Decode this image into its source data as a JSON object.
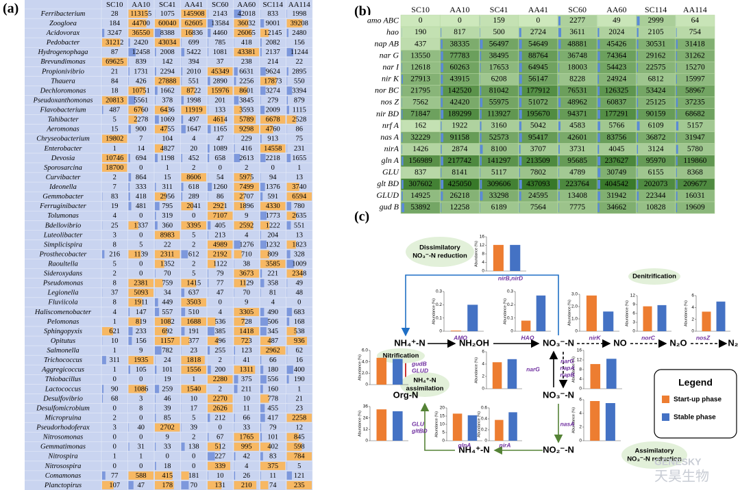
{
  "panel_a": {
    "label": "(a)",
    "columns": [
      "SC10",
      "AA10",
      "SC41",
      "AA41",
      "SC60",
      "AA60",
      "SC114",
      "AA114"
    ],
    "rows": [
      {
        "name": "Ferribacterium",
        "values": [
          28,
          113155,
          1075,
          145908,
          2143,
          42018,
          833,
          1998
        ]
      },
      {
        "name": "Zoogloea",
        "values": [
          184,
          44700,
          60040,
          62605,
          13584,
          36032,
          9001,
          39208
        ]
      },
      {
        "name": "Acidovorax",
        "values": [
          3247,
          36550,
          8388,
          16836,
          4460,
          26065,
          12145,
          2480
        ]
      },
      {
        "name": "Pedobacter",
        "values": [
          31212,
          2420,
          43034,
          699,
          785,
          418,
          2082,
          156
        ]
      },
      {
        "name": "Hydrogenophaga",
        "values": [
          87,
          12458,
          2008,
          5422,
          1081,
          43381,
          2137,
          11244
        ]
      },
      {
        "name": "Brevundimonas",
        "values": [
          69625,
          839,
          142,
          394,
          37,
          238,
          214,
          22
        ]
      },
      {
        "name": "Propionivibrio",
        "values": [
          21,
          1731,
          2294,
          2010,
          45349,
          6631,
          9624,
          2895
        ]
      },
      {
        "name": "Thauera",
        "values": [
          84,
          426,
          27888,
          551,
          2890,
          2256,
          17873,
          550
        ]
      },
      {
        "name": "Dechloromonas",
        "values": [
          18,
          10751,
          1662,
          8722,
          15976,
          8601,
          3274,
          3394
        ]
      },
      {
        "name": "Pseudoxanthomonas",
        "values": [
          20813,
          5561,
          378,
          1998,
          201,
          3845,
          279,
          879
        ]
      },
      {
        "name": "Flavobacterium",
        "values": [
          487,
          6760,
          6436,
          11919,
          133,
          3593,
          2009,
          1115
        ]
      },
      {
        "name": "Tahibacter",
        "values": [
          5,
          2278,
          1069,
          497,
          4614,
          5789,
          6678,
          2528
        ]
      },
      {
        "name": "Aeromonas",
        "values": [
          15,
          900,
          4755,
          1647,
          1165,
          9298,
          4760,
          86
        ]
      },
      {
        "name": "Chryseobacterium",
        "values": [
          19802,
          7,
          104,
          4,
          47,
          229,
          913,
          75
        ]
      },
      {
        "name": "Enterobacter",
        "values": [
          1,
          14,
          4827,
          20,
          1089,
          416,
          14558,
          231
        ]
      },
      {
        "name": "Devosia",
        "values": [
          10746,
          694,
          1198,
          452,
          658,
          2613,
          2218,
          1655
        ]
      },
      {
        "name": "Sporosarcina",
        "values": [
          18700,
          0,
          1,
          2,
          0,
          2,
          0,
          1
        ]
      },
      {
        "name": "Curvibacter",
        "values": [
          2,
          864,
          15,
          8606,
          54,
          5975,
          94,
          13
        ]
      },
      {
        "name": "Ideonella",
        "values": [
          7,
          333,
          311,
          618,
          1260,
          7499,
          1376,
          3740
        ]
      },
      {
        "name": "Gemmobacter",
        "values": [
          83,
          418,
          2956,
          289,
          86,
          2707,
          591,
          6594
        ]
      },
      {
        "name": "Ferruginibacter",
        "values": [
          19,
          481,
          795,
          2041,
          2921,
          1896,
          4330,
          780
        ]
      },
      {
        "name": "Tolumonas",
        "values": [
          4,
          0,
          319,
          0,
          7107,
          9,
          1773,
          2635
        ]
      },
      {
        "name": "Bdellovibrio",
        "values": [
          25,
          1337,
          360,
          3395,
          405,
          2592,
          1222,
          551
        ]
      },
      {
        "name": "Luteolibacter",
        "values": [
          3,
          0,
          8983,
          5,
          213,
          4,
          204,
          13
        ]
      },
      {
        "name": "Simplicispira",
        "values": [
          8,
          5,
          22,
          2,
          4989,
          1276,
          1232,
          1823
        ]
      },
      {
        "name": "Prosthecobacter",
        "values": [
          216,
          1139,
          2311,
          612,
          2192,
          710,
          809,
          328
        ]
      },
      {
        "name": "Raoultella",
        "values": [
          5,
          0,
          1352,
          2,
          1122,
          38,
          3585,
          1009
        ]
      },
      {
        "name": "Sideroxydans",
        "values": [
          2,
          0,
          70,
          5,
          79,
          3673,
          221,
          2348
        ]
      },
      {
        "name": "Pseudomonas",
        "values": [
          8,
          2381,
          759,
          1415,
          77,
          1129,
          358,
          49
        ]
      },
      {
        "name": "Legionella",
        "values": [
          37,
          5093,
          34,
          637,
          47,
          70,
          81,
          48
        ]
      },
      {
        "name": "Fluviicola",
        "values": [
          8,
          1911,
          449,
          3503,
          0,
          9,
          4,
          0
        ]
      },
      {
        "name": "Haliscomenobacter",
        "values": [
          4,
          147,
          557,
          510,
          4,
          3305,
          490,
          683
        ]
      },
      {
        "name": "Pelomonas",
        "values": [
          1,
          819,
          1082,
          1688,
          536,
          728,
          506,
          168
        ]
      },
      {
        "name": "Sphingopyxis",
        "values": [
          621,
          233,
          692,
          191,
          385,
          1418,
          345,
          538
        ]
      },
      {
        "name": "Opitutus",
        "values": [
          10,
          156,
          1157,
          377,
          496,
          723,
          487,
          936
        ]
      },
      {
        "name": "Salmonella",
        "values": [
          1,
          9,
          782,
          23,
          255,
          123,
          2962,
          62
        ]
      },
      {
        "name": "Trichococcus",
        "values": [
          311,
          1935,
          24,
          1818,
          2,
          41,
          66,
          16
        ]
      },
      {
        "name": "Aggregicoccus",
        "values": [
          1,
          105,
          101,
          1556,
          200,
          1311,
          180,
          400
        ]
      },
      {
        "name": "Thiobacillus",
        "values": [
          0,
          0,
          19,
          1,
          2280,
          375,
          556,
          190
        ]
      },
      {
        "name": "Lactococcus",
        "values": [
          90,
          1086,
          259,
          1540,
          2,
          211,
          160,
          1
        ]
      },
      {
        "name": "Desulfovibrio",
        "values": [
          68,
          3,
          46,
          10,
          2270,
          10,
          778,
          21
        ]
      },
      {
        "name": "Desulfomicrobium",
        "values": [
          0,
          8,
          39,
          17,
          2626,
          11,
          455,
          23
        ]
      },
      {
        "name": "Micropruina",
        "values": [
          2,
          0,
          85,
          5,
          212,
          66,
          417,
          2258
        ]
      },
      {
        "name": "Pseudorhodoferax",
        "values": [
          3,
          40,
          2702,
          39,
          0,
          33,
          79,
          12
        ]
      },
      {
        "name": "Nitrosomonas",
        "values": [
          0,
          0,
          9,
          2,
          67,
          1765,
          101,
          845
        ]
      },
      {
        "name": "Gemmatimonas",
        "values": [
          0,
          31,
          33,
          138,
          512,
          995,
          402,
          598
        ]
      },
      {
        "name": "Nitrospira",
        "values": [
          1,
          1,
          0,
          0,
          227,
          42,
          83,
          784
        ]
      },
      {
        "name": "Nitrosospira",
        "values": [
          0,
          0,
          18,
          0,
          339,
          4,
          375,
          5
        ]
      },
      {
        "name": "Comamonas",
        "values": [
          77,
          588,
          415,
          181,
          10,
          26,
          11,
          121
        ]
      },
      {
        "name": "Planctopirus",
        "values": [
          107,
          47,
          178,
          70,
          131,
          210,
          74,
          235
        ]
      }
    ]
  },
  "panel_b": {
    "label": "(b)",
    "columns": [
      "SC10",
      "AA10",
      "SC41",
      "AA41",
      "SC60",
      "AA60",
      "SC114",
      "AA114"
    ],
    "rows": [
      {
        "name": "amo ABC",
        "values": [
          0,
          0,
          159,
          0,
          2277,
          49,
          2999,
          64
        ]
      },
      {
        "name": "hao",
        "values": [
          190,
          817,
          500,
          2724,
          3611,
          2024,
          2105,
          754
        ]
      },
      {
        "name": "nap AB",
        "values": [
          437,
          38335,
          56497,
          54649,
          48881,
          45426,
          30531,
          31418
        ]
      },
      {
        "name": "nar G",
        "values": [
          13550,
          77783,
          38495,
          88764,
          36748,
          74364,
          29162,
          31262
        ]
      },
      {
        "name": "nar I",
        "values": [
          12618,
          60263,
          17653,
          64945,
          18003,
          54423,
          22575,
          15270
        ]
      },
      {
        "name": "nir K",
        "values": [
          27913,
          43915,
          6208,
          56147,
          8228,
          24924,
          6812,
          15997
        ]
      },
      {
        "name": "nor BC",
        "values": [
          21795,
          142520,
          81042,
          177912,
          76531,
          126325,
          53424,
          58967
        ]
      },
      {
        "name": "nos Z",
        "values": [
          7562,
          42420,
          55975,
          51072,
          48962,
          60837,
          25125,
          37235
        ]
      },
      {
        "name": "nir BD",
        "values": [
          71847,
          189299,
          113927,
          195670,
          94371,
          177291,
          90159,
          68682
        ]
      },
      {
        "name": "nrf A",
        "values": [
          162,
          1922,
          3160,
          5042,
          4583,
          5766,
          6109,
          5157
        ]
      },
      {
        "name": "nas A",
        "values": [
          32229,
          91158,
          52573,
          95417,
          42601,
          83756,
          36872,
          31947
        ]
      },
      {
        "name": "nirA",
        "values": [
          1426,
          2874,
          8100,
          3707,
          3731,
          4045,
          3124,
          5780
        ]
      },
      {
        "name": "gln A",
        "values": [
          156989,
          217742,
          141297,
          213509,
          95685,
          237627,
          95970,
          119860
        ]
      },
      {
        "name": "GLU",
        "values": [
          837,
          8141,
          5117,
          7802,
          4789,
          30749,
          6155,
          8368
        ]
      },
      {
        "name": "glt BD",
        "values": [
          307602,
          425050,
          309606,
          437093,
          223764,
          404542,
          202073,
          209677
        ]
      },
      {
        "name": "GLUD",
        "values": [
          14925,
          26218,
          33298,
          24595,
          13408,
          31942,
          22344,
          16031
        ]
      },
      {
        "name": "gud B",
        "values": [
          53892,
          12258,
          6189,
          7564,
          7775,
          34662,
          10828,
          19609
        ]
      }
    ]
  },
  "panel_c": {
    "label": "(c)",
    "nodes": [
      "NH₄⁺-N",
      "NH₂OH",
      "NO₃⁻-N",
      "NO",
      "N₂O",
      "N₂",
      "Org-N",
      "NO₃⁻-N",
      "NO₂⁻-N",
      "NH₄⁺-N"
    ],
    "processes": [
      [
        "Dissimilatory",
        "NO₃⁻-N reduction"
      ],
      [
        "Denitrification"
      ],
      [
        "Nitrification"
      ],
      [
        "NH₄⁺-N",
        "assimilation"
      ],
      [
        "Assimilatory",
        "NO₃⁻-N reduction"
      ]
    ],
    "legend": {
      "title": "Legend",
      "series": [
        {
          "name": "Start-up phase",
          "color": "#ed7d31"
        },
        {
          "name": "Stable phase",
          "color": "#4472c4"
        }
      ]
    },
    "charts": [
      {
        "label": [
          "nirB,nirD"
        ],
        "ylabel": "Abundance (%)",
        "ylim": [
          0,
          16
        ],
        "yticks": [
          0,
          4,
          8,
          12,
          16
        ],
        "values": [
          12.2,
          12.2
        ]
      },
      {
        "label": [
          "AMO"
        ],
        "ylabel": "Abundance (%)",
        "ylim": [
          0,
          0.3
        ],
        "yticks": [
          0,
          0.1,
          0.2,
          0.3
        ],
        "values": [
          0.005,
          0.2
        ]
      },
      {
        "label": [
          "HAO"
        ],
        "ylabel": "Abundance (%)",
        "ylim": [
          0,
          0.3
        ],
        "yticks": [
          0,
          0.1,
          0.2,
          0.3
        ],
        "values": [
          0.08,
          0.27
        ]
      },
      {
        "label": [
          "nirK"
        ],
        "ylabel": "Abundance (%)",
        "ylim": [
          0,
          3
        ],
        "yticks": [
          0,
          {
            "value": 1,
            "label": "1.0"
          },
          {
            "value": 2,
            "label": "2.0"
          },
          {
            "value": 3,
            "label": "3.0"
          }
        ],
        "values": [
          2.9,
          1.6
        ]
      },
      {
        "label": [
          "norC"
        ],
        "ylabel": "Abundance (%)",
        "ylim": [
          0,
          12
        ],
        "yticks": [
          0,
          3,
          6,
          9,
          12
        ],
        "values": [
          8.4,
          8.8
        ]
      },
      {
        "label": [
          "nosZ"
        ],
        "ylabel": "Abundance (%)",
        "ylim": [
          0,
          6
        ],
        "yticks": [
          0,
          2,
          4,
          6
        ],
        "values": [
          3.3,
          5.0
        ]
      },
      {
        "label": [
          "gudB",
          "GLUD"
        ],
        "ylabel": "Abundance (%)",
        "ylim": [
          0,
          6
        ],
        "yticks": [
          0,
          {
            "value": 2,
            "label": "2.0"
          },
          {
            "value": 4,
            "label": "4.0"
          },
          {
            "value": 6,
            "label": "6.0"
          }
        ],
        "values": [
          4.7,
          4.5
        ]
      },
      {
        "label": [
          "narG"
        ],
        "ylabel": "Abundance (%)",
        "ylim": [
          0,
          6
        ],
        "yticks": [
          0,
          2,
          4,
          6
        ],
        "values": [
          4.3,
          4.8
        ]
      },
      {
        "label": [
          "narG",
          "napA",
          "napB"
        ],
        "ylabel": "Abundance (%)",
        "ylim": [
          0,
          16
        ],
        "yticks": [
          0,
          4,
          8,
          12,
          16
        ],
        "values": [
          10.3,
          12.5
        ]
      },
      {
        "label": [
          "GLU",
          "gltBD"
        ],
        "ylabel": "Abundance (%)",
        "ylim": [
          0,
          36
        ],
        "yticks": [
          0,
          12,
          24,
          36
        ],
        "values": [
          33,
          31
        ]
      },
      {
        "label": [
          "glnA"
        ],
        "ylabel": "Abundance (%)",
        "ylim": [
          0,
          20
        ],
        "yticks": [
          0,
          5,
          10,
          15,
          20
        ],
        "values": [
          16.5,
          15.5
        ]
      },
      {
        "label": [
          "nirA"
        ],
        "ylabel": "Abundance (%)",
        "ylim": [
          0,
          0.6
        ],
        "yticks": [
          0,
          0.2,
          0.4,
          0.6
        ],
        "values": [
          0.38,
          0.52
        ]
      },
      {
        "label": [
          "nasA"
        ],
        "ylabel": "Abundance (%)",
        "ylim": [
          0,
          6
        ],
        "yticks": [
          0,
          2,
          4,
          6
        ],
        "values": [
          5.8,
          5.5
        ]
      }
    ]
  },
  "watermark": [
    "GENESKY",
    "天昊生物"
  ]
}
